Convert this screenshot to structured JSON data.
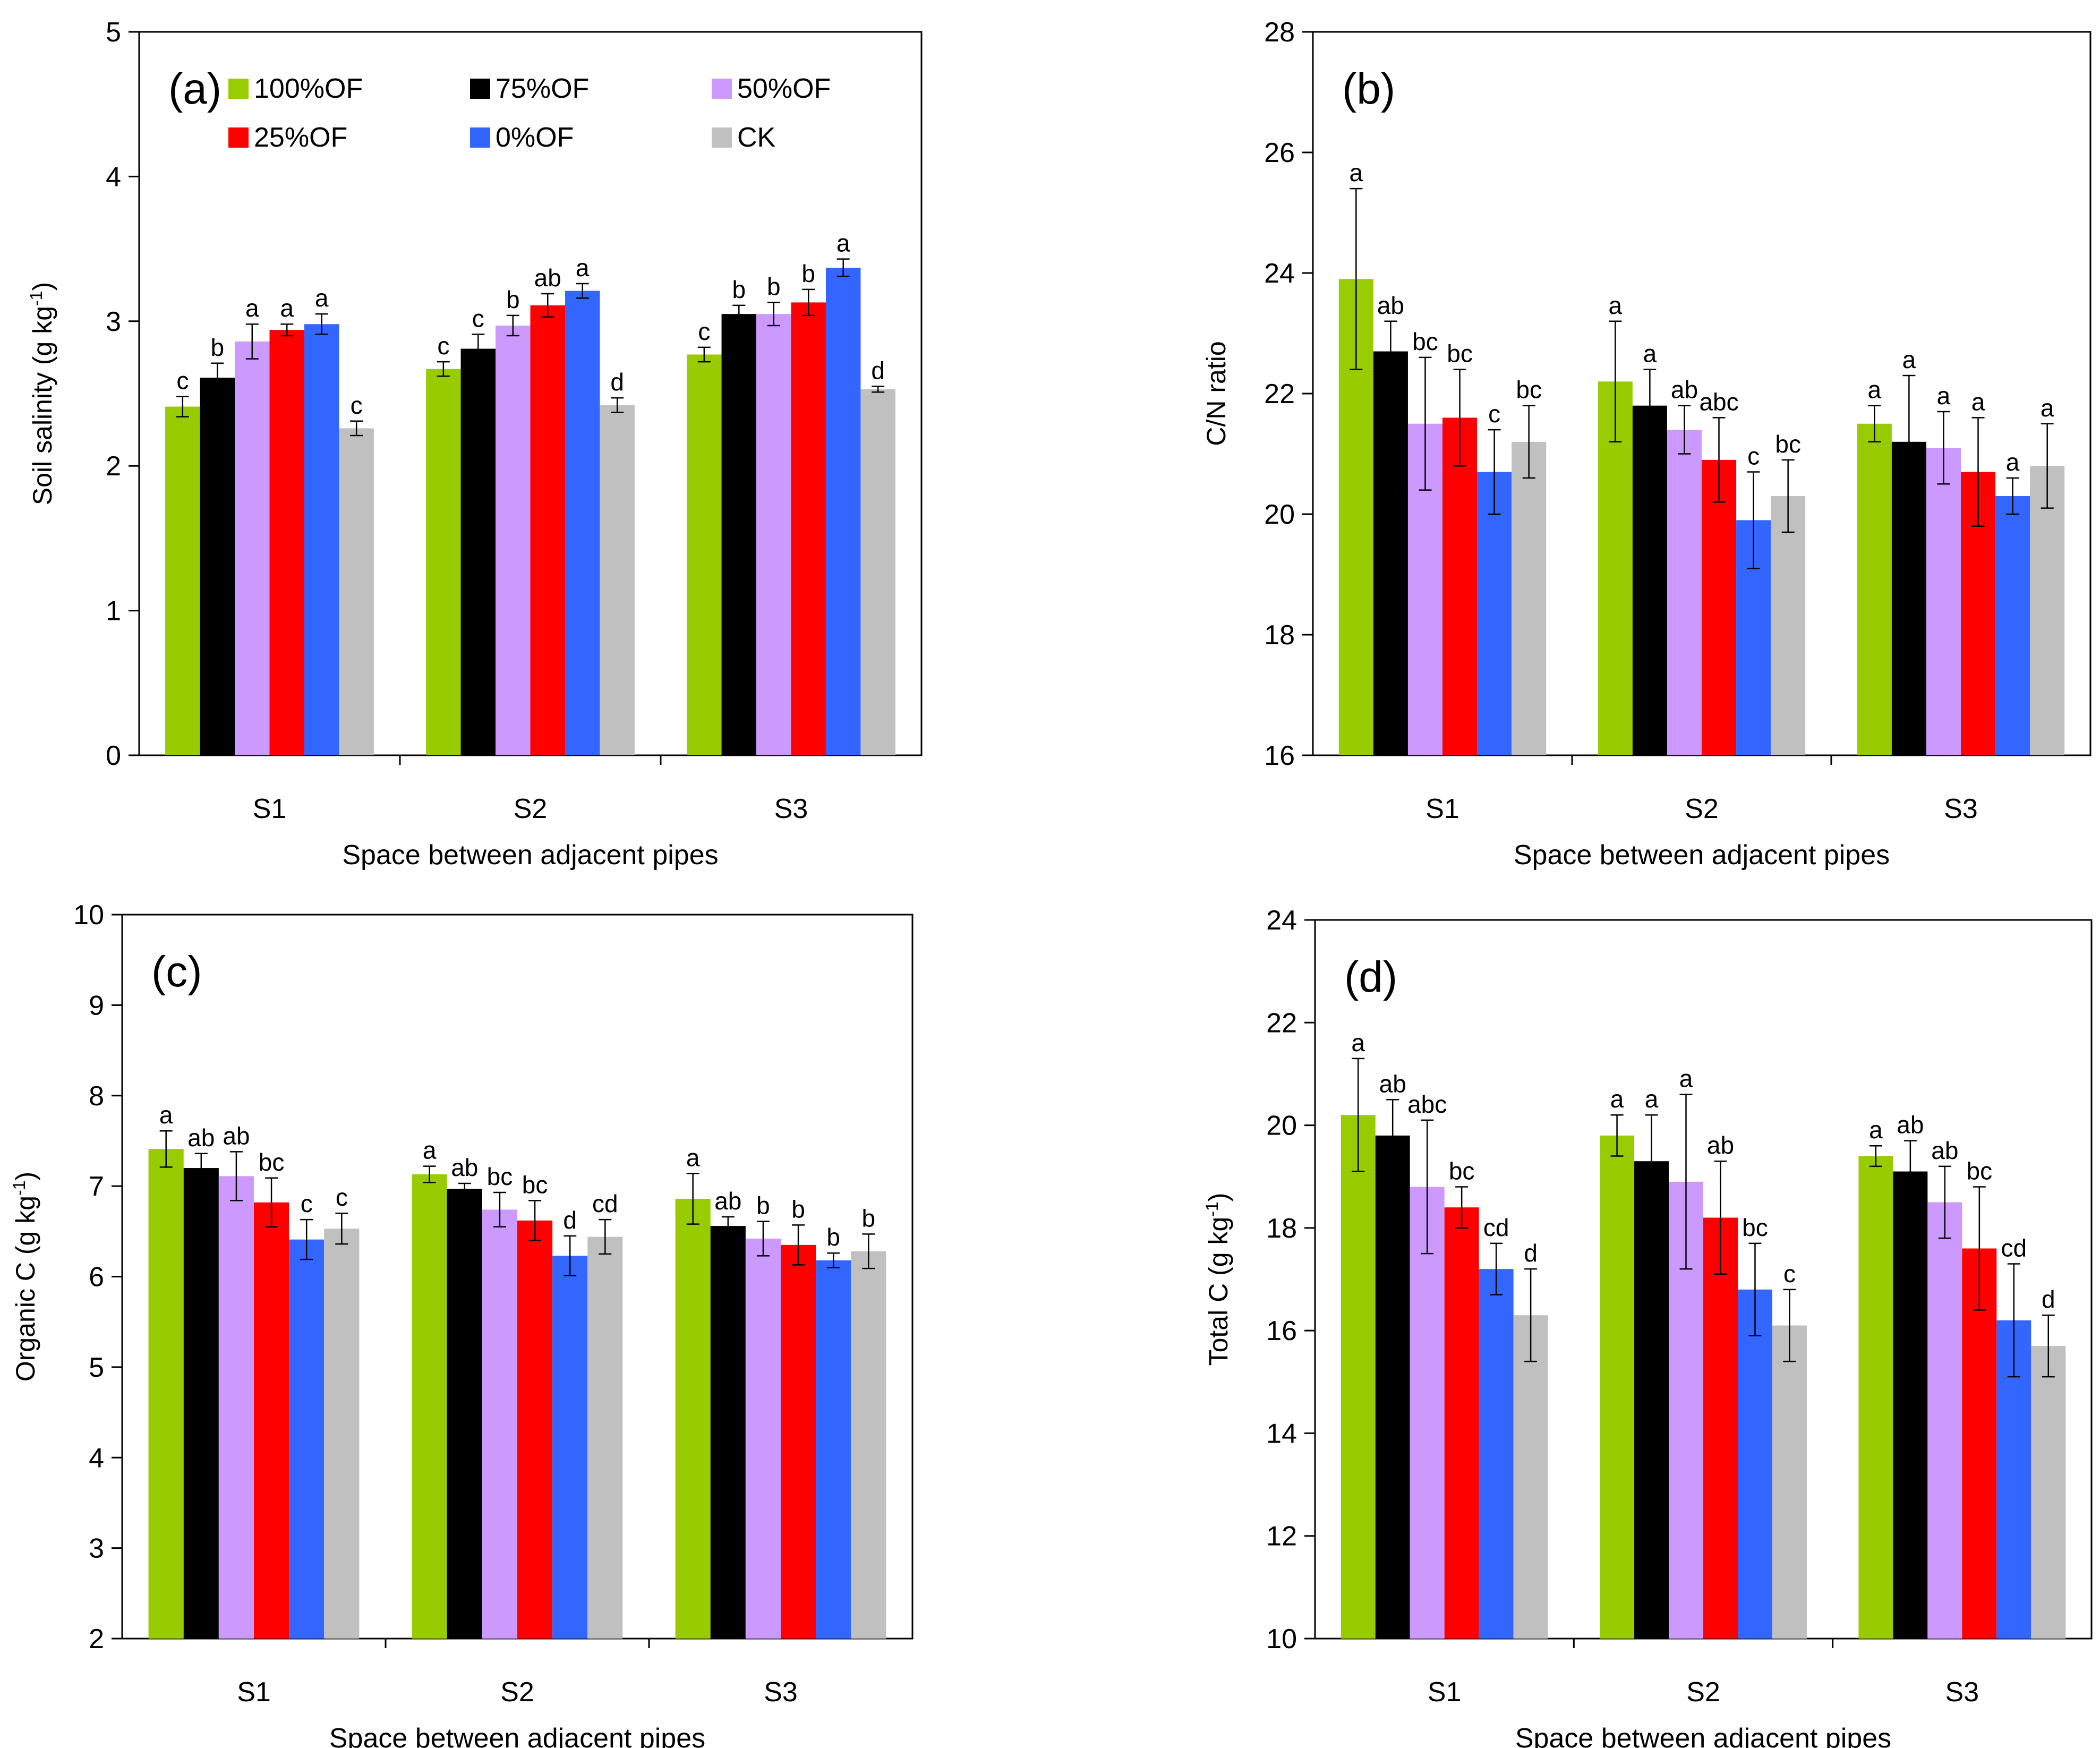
{
  "colors": {
    "100%OF": "#99cc00",
    "75%OF": "#000000",
    "50%OF": "#cc99ff",
    "25%OF": "#ff0000",
    "0%OF": "#3366ff",
    "CK": "#c0c0c0"
  },
  "chart_data": [
    {
      "id": "a",
      "type": "bar",
      "panel_label": "(a)",
      "title": "",
      "xlabel": "Space between adjacent pipes",
      "ylabel": "Soil salinity (g kg",
      "ylabel_sup": "-1",
      "ylabel_suffix": ")",
      "ylim": [
        0,
        5
      ],
      "yticks": [
        0,
        1,
        2,
        3,
        4,
        5
      ],
      "categories": [
        "S1",
        "S2",
        "S3"
      ],
      "legend": [
        "100%OF",
        "75%OF",
        "50%OF",
        "25%OF",
        "0%OF",
        "CK"
      ],
      "series": [
        {
          "name": "100%OF",
          "values": [
            2.41,
            2.67,
            2.77
          ],
          "errors": [
            0.07,
            0.05,
            0.05
          ],
          "letters": [
            "c",
            "c",
            "c"
          ]
        },
        {
          "name": "75%OF",
          "values": [
            2.61,
            2.81,
            3.05
          ],
          "errors": [
            0.1,
            0.1,
            0.06
          ],
          "letters": [
            "b",
            "c",
            "b"
          ]
        },
        {
          "name": "50%OF",
          "values": [
            2.86,
            2.97,
            3.05
          ],
          "errors": [
            0.12,
            0.07,
            0.08
          ],
          "letters": [
            "a",
            "b",
            "b"
          ]
        },
        {
          "name": "25%OF",
          "values": [
            2.94,
            3.11,
            3.13
          ],
          "errors": [
            0.04,
            0.08,
            0.09
          ],
          "letters": [
            "a",
            "ab",
            "b"
          ]
        },
        {
          "name": "0%OF",
          "values": [
            2.98,
            3.21,
            3.37
          ],
          "errors": [
            0.07,
            0.05,
            0.06
          ],
          "letters": [
            "a",
            "a",
            "a"
          ]
        },
        {
          "name": "CK",
          "values": [
            2.26,
            2.42,
            2.53
          ],
          "errors": [
            0.05,
            0.05,
            0.02
          ],
          "letters": [
            "c",
            "d",
            "d"
          ]
        }
      ]
    },
    {
      "id": "b",
      "type": "bar",
      "panel_label": "(b)",
      "title": "",
      "xlabel": "Space between adjacent pipes",
      "ylabel": "C/N ratio",
      "ylabel_sup": "",
      "ylabel_suffix": "",
      "ylim": [
        16,
        28
      ],
      "yticks": [
        16,
        18,
        20,
        22,
        24,
        26,
        28
      ],
      "categories": [
        "S1",
        "S2",
        "S3"
      ],
      "series": [
        {
          "name": "100%OF",
          "values": [
            23.9,
            22.2,
            21.5
          ],
          "errors": [
            1.5,
            1.0,
            0.3
          ],
          "letters": [
            "a",
            "a",
            "a"
          ]
        },
        {
          "name": "75%OF",
          "values": [
            22.7,
            21.8,
            21.2
          ],
          "errors": [
            0.5,
            0.6,
            1.1
          ],
          "letters": [
            "ab",
            "a",
            "a"
          ]
        },
        {
          "name": "50%OF",
          "values": [
            21.5,
            21.4,
            21.1
          ],
          "errors": [
            1.1,
            0.4,
            0.6
          ],
          "letters": [
            "bc",
            "ab",
            "a"
          ]
        },
        {
          "name": "25%OF",
          "values": [
            21.6,
            20.9,
            20.7
          ],
          "errors": [
            0.8,
            0.7,
            0.9
          ],
          "letters": [
            "bc",
            "abc",
            "a"
          ]
        },
        {
          "name": "0%OF",
          "values": [
            20.7,
            19.9,
            20.3
          ],
          "errors": [
            0.7,
            0.8,
            0.3
          ],
          "letters": [
            "c",
            "c",
            "a"
          ]
        },
        {
          "name": "CK",
          "values": [
            21.2,
            20.3,
            20.8
          ],
          "errors": [
            0.6,
            0.6,
            0.7
          ],
          "letters": [
            "bc",
            "bc",
            "a"
          ]
        }
      ]
    },
    {
      "id": "c",
      "type": "bar",
      "panel_label": "(c)",
      "title": "",
      "xlabel": "Space between adjacent pipes",
      "ylabel": "Organic C (g kg",
      "ylabel_sup": "-1",
      "ylabel_suffix": ")",
      "ylim": [
        2,
        10
      ],
      "yticks": [
        2,
        3,
        4,
        5,
        6,
        7,
        8,
        9,
        10
      ],
      "categories": [
        "S1",
        "S2",
        "S3"
      ],
      "series": [
        {
          "name": "100%OF",
          "values": [
            7.41,
            7.13,
            6.86
          ],
          "errors": [
            0.2,
            0.09,
            0.28
          ],
          "letters": [
            "a",
            "a",
            "a"
          ]
        },
        {
          "name": "75%OF",
          "values": [
            7.2,
            6.97,
            6.56
          ],
          "errors": [
            0.16,
            0.06,
            0.1
          ],
          "letters": [
            "ab",
            "ab",
            "ab"
          ]
        },
        {
          "name": "50%OF",
          "values": [
            7.11,
            6.74,
            6.42
          ],
          "errors": [
            0.27,
            0.19,
            0.19
          ],
          "letters": [
            "ab",
            "bc",
            "b"
          ]
        },
        {
          "name": "25%OF",
          "values": [
            6.82,
            6.62,
            6.35
          ],
          "errors": [
            0.27,
            0.22,
            0.22
          ],
          "letters": [
            "bc",
            "bc",
            "b"
          ]
        },
        {
          "name": "0%OF",
          "values": [
            6.41,
            6.23,
            6.18
          ],
          "errors": [
            0.22,
            0.22,
            0.08
          ],
          "letters": [
            "c",
            "d",
            "b"
          ]
        },
        {
          "name": "CK",
          "values": [
            6.53,
            6.44,
            6.28
          ],
          "errors": [
            0.17,
            0.19,
            0.19
          ],
          "letters": [
            "c",
            "cd",
            "b"
          ]
        }
      ]
    },
    {
      "id": "d",
      "type": "bar",
      "panel_label": "(d)",
      "title": "",
      "xlabel": "Space between adjacent pipes",
      "ylabel": "Total C (g kg",
      "ylabel_sup": "-1",
      "ylabel_suffix": ")",
      "ylim": [
        10,
        24
      ],
      "yticks": [
        10,
        12,
        14,
        16,
        18,
        20,
        22,
        24
      ],
      "categories": [
        "S1",
        "S2",
        "S3"
      ],
      "series": [
        {
          "name": "100%OF",
          "values": [
            20.2,
            19.8,
            19.4
          ],
          "errors": [
            1.1,
            0.4,
            0.2
          ],
          "letters": [
            "a",
            "a",
            "a"
          ]
        },
        {
          "name": "75%OF",
          "values": [
            19.8,
            19.3,
            19.1
          ],
          "errors": [
            0.7,
            0.9,
            0.6
          ],
          "letters": [
            "ab",
            "a",
            "ab"
          ]
        },
        {
          "name": "50%OF",
          "values": [
            18.8,
            18.9,
            18.5
          ],
          "errors": [
            1.3,
            1.7,
            0.7
          ],
          "letters": [
            "abc",
            "a",
            "ab"
          ]
        },
        {
          "name": "25%OF",
          "values": [
            18.4,
            18.2,
            17.6
          ],
          "errors": [
            0.4,
            1.1,
            1.2
          ],
          "letters": [
            "bc",
            "ab",
            "bc"
          ]
        },
        {
          "name": "0%OF",
          "values": [
            17.2,
            16.8,
            16.2
          ],
          "errors": [
            0.5,
            0.9,
            1.1
          ],
          "letters": [
            "cd",
            "bc",
            "cd"
          ]
        },
        {
          "name": "CK",
          "values": [
            16.3,
            16.1,
            15.7
          ],
          "errors": [
            0.9,
            0.7,
            0.6
          ],
          "letters": [
            "d",
            "c",
            "d"
          ]
        }
      ]
    }
  ]
}
